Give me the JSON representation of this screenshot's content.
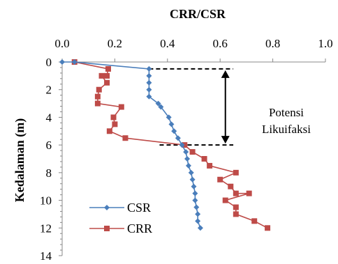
{
  "chart_data": {
    "type": "line",
    "title": "CRR/CSR",
    "ylabel": "Kedalaman (m)",
    "xlim": [
      0.0,
      1.0
    ],
    "ylim": [
      0,
      14
    ],
    "y_inverted": true,
    "x_axis_position": "top",
    "x_ticks": [
      "0.0",
      "0.2",
      "0.4",
      "0.6",
      "0.8",
      "1.0"
    ],
    "x_tick_values": [
      0.0,
      0.2,
      0.4,
      0.6,
      0.8,
      1.0
    ],
    "y_ticks": [
      "0",
      "2",
      "4",
      "6",
      "8",
      "10",
      "12",
      "14"
    ],
    "y_tick_values": [
      0,
      2,
      4,
      6,
      8,
      10,
      12,
      14
    ],
    "legend": "bottom-left",
    "series": [
      {
        "name": "CSR",
        "color": "#4a7ebb",
        "marker": "diamond",
        "points": [
          [
            0.0,
            0.0
          ],
          [
            0.047,
            0.0
          ],
          [
            0.33,
            0.5
          ],
          [
            0.33,
            1.0
          ],
          [
            0.33,
            1.5
          ],
          [
            0.33,
            2.0
          ],
          [
            0.33,
            2.5
          ],
          [
            0.365,
            3.0
          ],
          [
            0.375,
            3.25
          ],
          [
            0.405,
            4.0
          ],
          [
            0.415,
            4.5
          ],
          [
            0.425,
            5.0
          ],
          [
            0.44,
            5.5
          ],
          [
            0.455,
            6.0
          ],
          [
            0.47,
            6.5
          ],
          [
            0.475,
            7.0
          ],
          [
            0.48,
            7.5
          ],
          [
            0.49,
            8.0
          ],
          [
            0.495,
            8.5
          ],
          [
            0.5,
            9.0
          ],
          [
            0.505,
            9.5
          ],
          [
            0.505,
            10.0
          ],
          [
            0.51,
            10.5
          ],
          [
            0.515,
            11.0
          ],
          [
            0.515,
            11.5
          ],
          [
            0.525,
            12.0
          ]
        ]
      },
      {
        "name": "CRR",
        "color": "#be4b48",
        "marker": "square",
        "points": [
          [
            0.047,
            0.0
          ],
          [
            0.175,
            0.5
          ],
          [
            0.17,
            1.0
          ],
          [
            0.15,
            1.0
          ],
          [
            0.17,
            1.5
          ],
          [
            0.14,
            2.0
          ],
          [
            0.135,
            2.5
          ],
          [
            0.135,
            3.0
          ],
          [
            0.225,
            3.25
          ],
          [
            0.195,
            4.0
          ],
          [
            0.2,
            4.5
          ],
          [
            0.18,
            5.0
          ],
          [
            0.24,
            5.5
          ],
          [
            0.465,
            6.0
          ],
          [
            0.495,
            6.5
          ],
          [
            0.54,
            7.0
          ],
          [
            0.56,
            7.5
          ],
          [
            0.66,
            8.0
          ],
          [
            0.6,
            8.5
          ],
          [
            0.64,
            9.0
          ],
          [
            0.66,
            9.5
          ],
          [
            0.71,
            9.5
          ],
          [
            0.62,
            10.0
          ],
          [
            0.66,
            10.5
          ],
          [
            0.66,
            11.0
          ],
          [
            0.73,
            11.5
          ],
          [
            0.78,
            12.0
          ]
        ]
      }
    ],
    "annotation": {
      "lines": [
        "Potensi",
        "Likuifaksi"
      ],
      "zone_top_depth": 0.5,
      "zone_bottom_depth": 6.0,
      "zone_x_start": 0.33,
      "zone_x_start_bottom": 0.37,
      "zone_x_end": 0.65,
      "arrow_x": 0.62
    }
  }
}
